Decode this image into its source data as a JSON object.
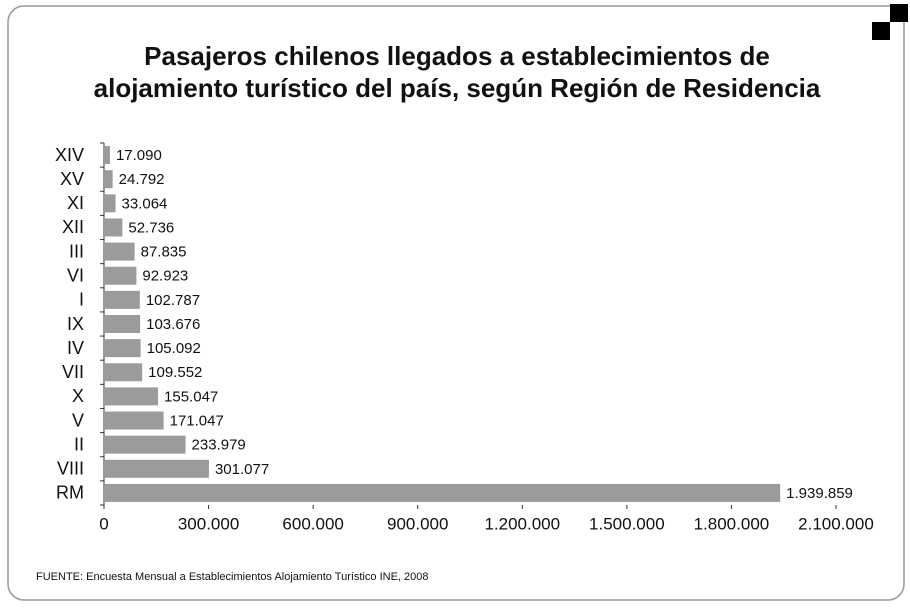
{
  "chart_data": {
    "type": "hbar",
    "title": [
      "Pasajeros chilenos llegados a establecimientos de",
      "alojamiento turístico del país, según Región de Residencia"
    ],
    "note": "FUENTE: Encuesta Mensual a Establecimientos Alojamiento Turístico INE, 2008",
    "categories": [
      "XIV",
      "XV",
      "XI",
      "XII",
      "III",
      "VI",
      "I",
      "IX",
      "IV",
      "VII",
      "X",
      "V",
      "II",
      "VIII",
      "RM"
    ],
    "values": [
      17090,
      24792,
      33064,
      52736,
      87835,
      92923,
      102787,
      103676,
      105092,
      109552,
      155047,
      171047,
      233979,
      301077,
      1939859
    ],
    "value_labels": [
      "17.090",
      "24.792",
      "33.064",
      "52.736",
      "87.835",
      "92.923",
      "102.787",
      "103.676",
      "105.092",
      "109.552",
      "155.047",
      "171.047",
      "233.979",
      "301.077",
      "1.939.859"
    ],
    "color": "#9b9b9b",
    "xlim": [
      0,
      2100000
    ],
    "xticks": [
      0,
      {
        "value": 300000,
        "label": "300.000"
      },
      {
        "value": 600000,
        "label": "600.000"
      },
      {
        "value": 900000,
        "label": "900.000"
      },
      {
        "value": 1200000,
        "label": "1.200.000"
      },
      {
        "value": 1500000,
        "label": "1.500.000"
      },
      {
        "value": 1800000,
        "label": "1.800.000"
      },
      {
        "value": 2100000,
        "label": "2.100.000"
      }
    ],
    "grid": false
  }
}
